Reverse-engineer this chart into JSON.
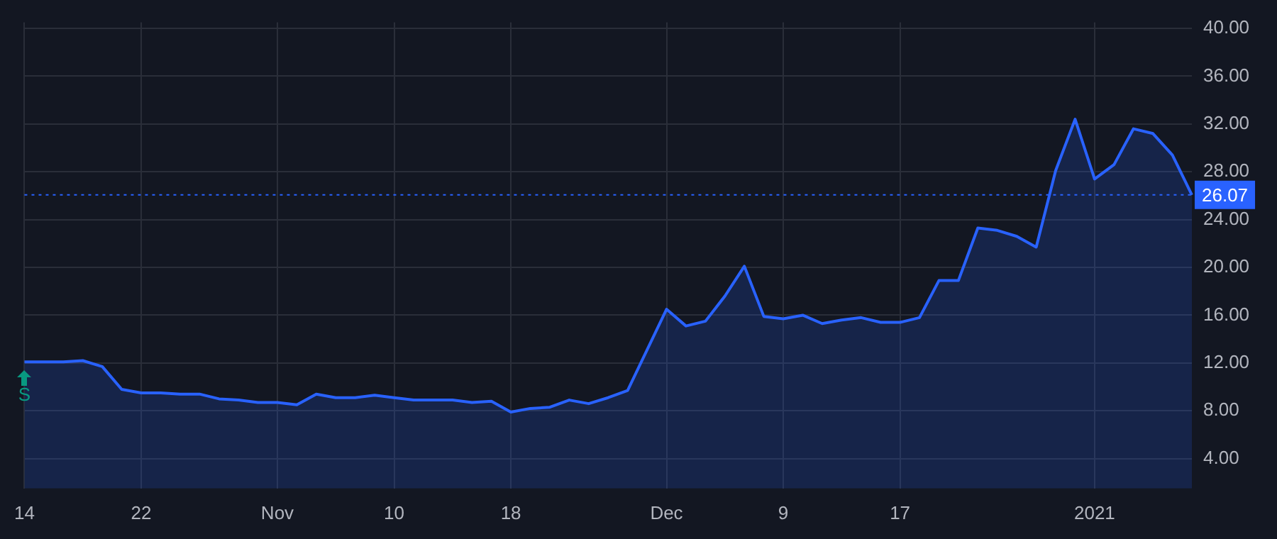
{
  "chart_data": {
    "type": "area",
    "categories": [
      "14",
      null,
      null,
      null,
      null,
      null,
      "22",
      null,
      null,
      null,
      null,
      null,
      null,
      "Nov",
      null,
      null,
      null,
      null,
      null,
      "10",
      null,
      null,
      null,
      null,
      null,
      "18",
      null,
      null,
      null,
      null,
      null,
      null,
      null,
      "Dec",
      null,
      null,
      null,
      null,
      null,
      "9",
      null,
      null,
      null,
      null,
      null,
      "17",
      null,
      null,
      null,
      null,
      null,
      null,
      null,
      null,
      null,
      "2021",
      null,
      null,
      null,
      null,
      null
    ],
    "series": [
      {
        "color": "#2962ff",
        "values": [
          12.1,
          12.1,
          12.1,
          12.2,
          11.7,
          9.8,
          9.5,
          9.5,
          9.4,
          9.4,
          9.0,
          8.9,
          8.7,
          8.7,
          8.5,
          9.4,
          9.1,
          9.1,
          9.3,
          9.1,
          8.9,
          8.9,
          8.9,
          8.7,
          8.8,
          7.9,
          8.2,
          8.3,
          8.9,
          8.6,
          9.1,
          9.7,
          13.1,
          16.5,
          15.1,
          15.5,
          17.6,
          20.1,
          15.9,
          15.7,
          16.0,
          15.3,
          15.6,
          15.8,
          15.4,
          15.4,
          15.8,
          18.9,
          18.9,
          23.3,
          23.1,
          22.6,
          21.7,
          28.1,
          32.4,
          27.4,
          28.6,
          31.6,
          31.2,
          29.4,
          26.07
        ]
      }
    ],
    "ylim": [
      1.5,
      40.5
    ],
    "yticks": [
      {
        "value": 4,
        "label": "4.00"
      },
      {
        "value": 8,
        "label": "8.00"
      },
      {
        "value": 12,
        "label": "12.00"
      },
      {
        "value": 16,
        "label": "16.00"
      },
      {
        "value": 20,
        "label": "20.00"
      },
      {
        "value": 24,
        "label": "24.00"
      },
      {
        "value": 28,
        "label": "28.00"
      },
      {
        "value": 32,
        "label": "32.00"
      },
      {
        "value": 36,
        "label": "36.00"
      },
      {
        "value": 40,
        "label": "40.00"
      }
    ],
    "ref_lines": [
      {
        "axis": "y",
        "value": 26.07,
        "label": "26.07",
        "color": "#2962ff",
        "line_style": "dotted"
      }
    ],
    "annotations": [
      {
        "text": "S",
        "x": "14",
        "y": 12.1
      }
    ],
    "grid": true,
    "legend": false,
    "marker": "none",
    "line_style": "solid"
  }
}
